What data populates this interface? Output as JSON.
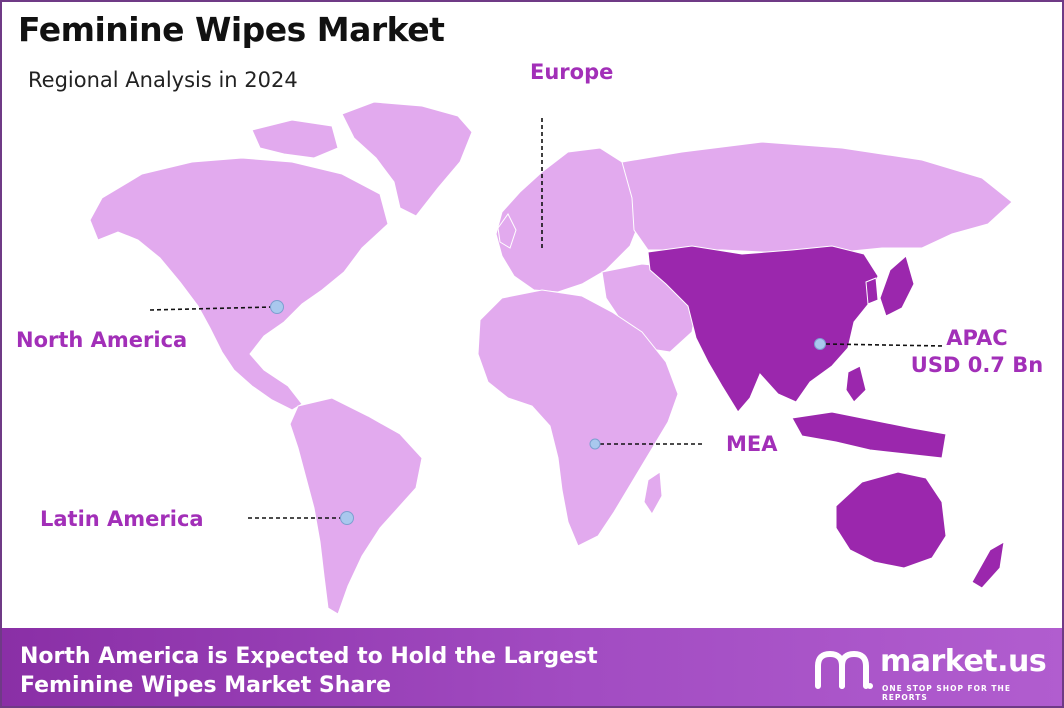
{
  "header": {
    "title": "Feminine Wipes Market",
    "subtitle": "Regional Analysis in 2024"
  },
  "regions": {
    "north_america": "North America",
    "europe": "Europe",
    "apac": "APAC",
    "apac_value": "USD 0.7 Bn",
    "mea": "MEA",
    "latin_america": "Latin America"
  },
  "footer": {
    "line1": "North America is Expected to Hold the Largest",
    "line2": "Feminine Wipes Market Share"
  },
  "brand": {
    "name": "market.us",
    "tagline": "ONE STOP SHOP FOR THE REPORTS"
  },
  "colors": {
    "land_light": "#e2aaee",
    "land_highlight": "#9b27ad",
    "label_text": "#a22fb8",
    "marker": "#a9c8ee",
    "footer_bg": "#9a3fb9"
  }
}
